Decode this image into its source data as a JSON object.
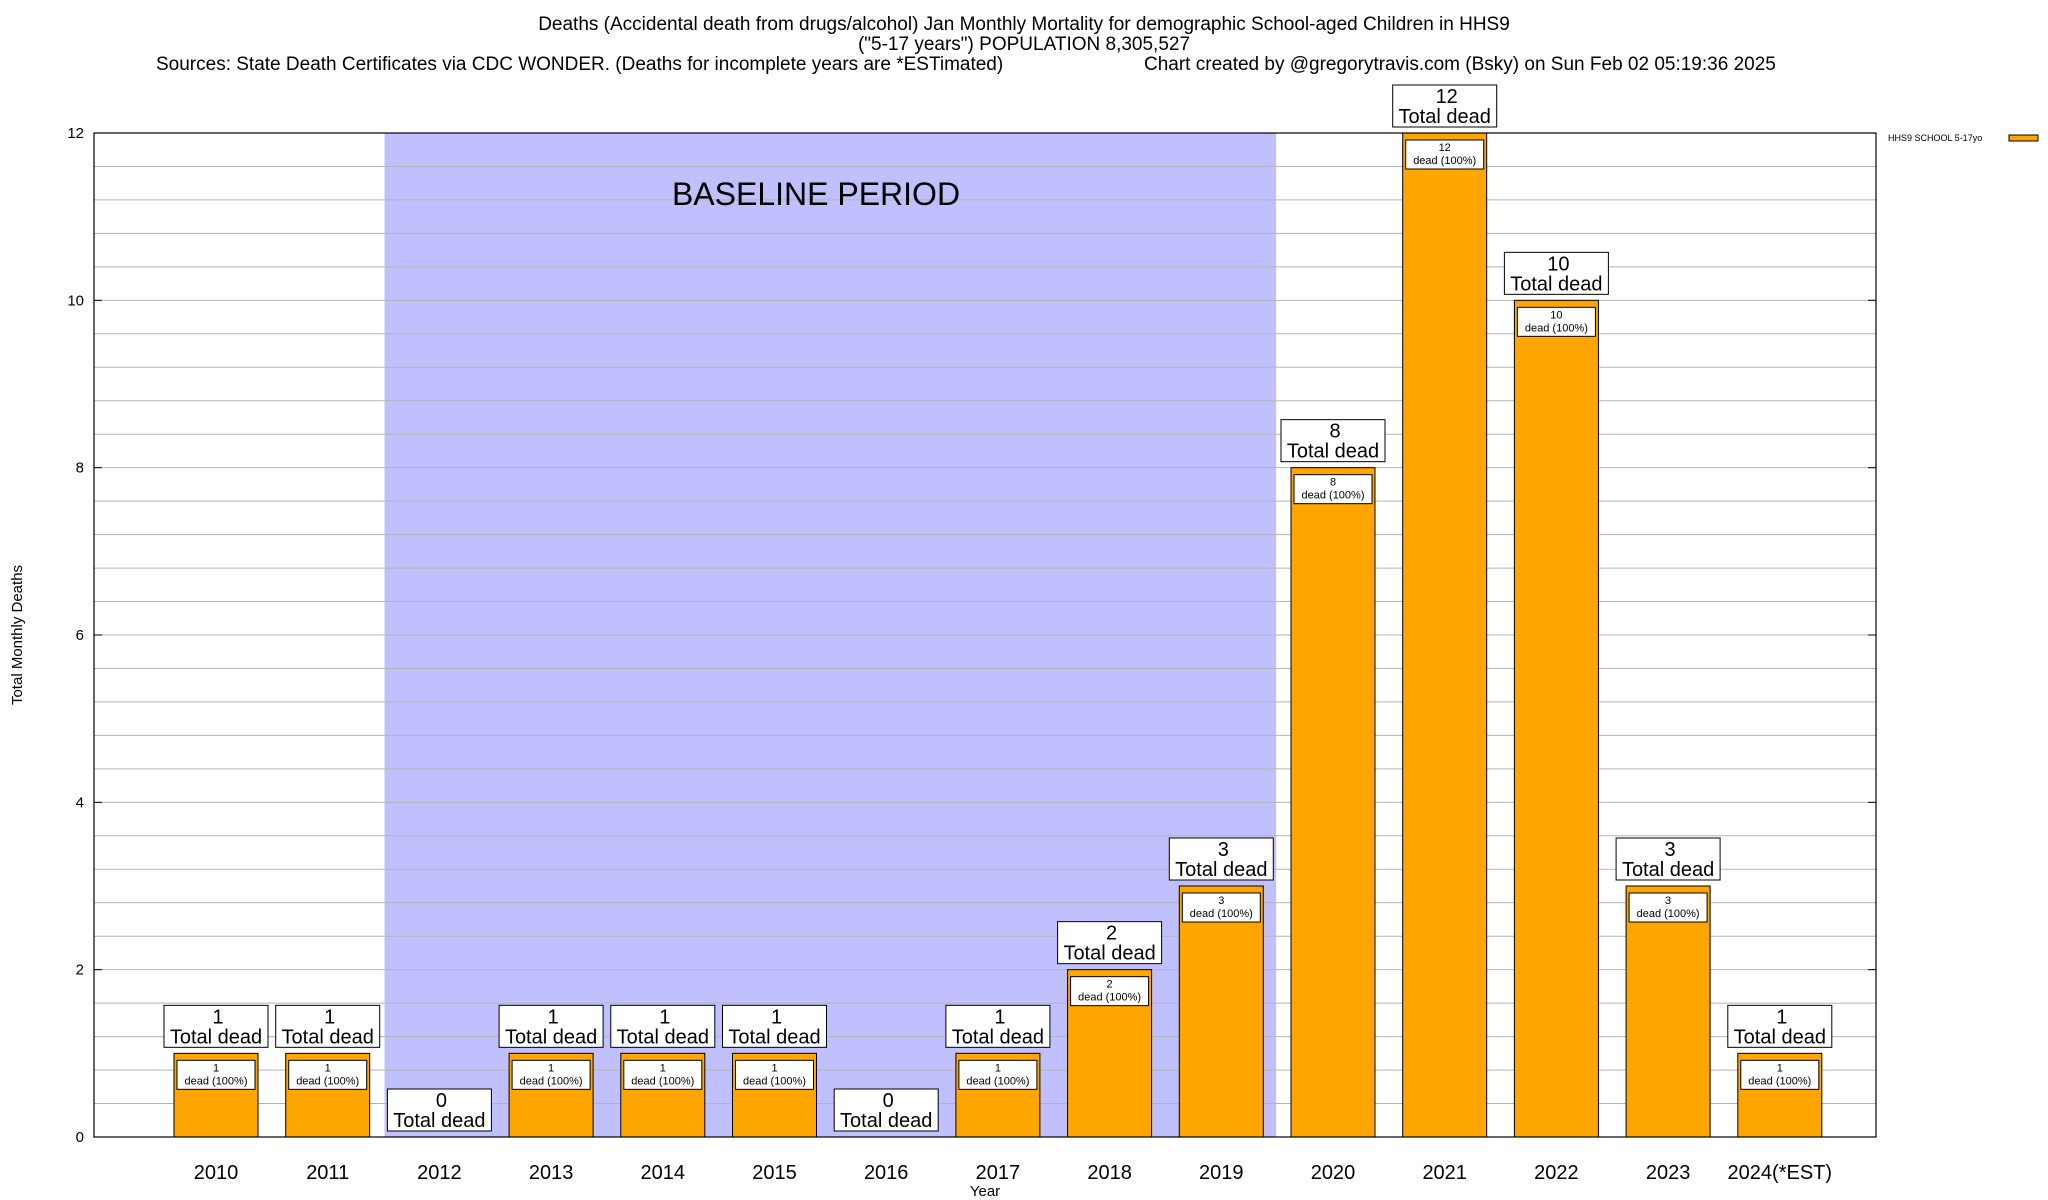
{
  "header": {
    "line1": "Deaths (Accidental death from drugs/alcohol) Jan Monthly Mortality for demographic School-aged Children in HHS9",
    "line2": "(\"5-17 years\") POPULATION 8,305,527",
    "line3_left": "Sources: State Death Certificates via CDC WONDER. (Deaths for incomplete years are *ESTimated)",
    "line3_right": "Chart created by @gregorytravis.com (Bsky) on Sun Feb 02 05:19:36 2025"
  },
  "chart_data": {
    "type": "bar",
    "xlabel": "Year",
    "ylabel": "Total Monthly Deaths",
    "ylim": [
      0,
      12
    ],
    "yticks": [
      0,
      2,
      4,
      6,
      8,
      10,
      12
    ],
    "minor_grid_step": 0.4,
    "categories": [
      "2010",
      "2011",
      "2012",
      "2013",
      "2014",
      "2015",
      "2016",
      "2017",
      "2018",
      "2019",
      "2020",
      "2021",
      "2022",
      "2023",
      "2024(*EST)"
    ],
    "series": [
      {
        "name": "HHS9 SCHOOL 5-17yo",
        "color": "#ffa500",
        "values": [
          1,
          1,
          0,
          1,
          1,
          1,
          0,
          1,
          2,
          3,
          8,
          12,
          10,
          3,
          1
        ]
      }
    ],
    "total_label": "Total dead",
    "bar_label_suffix": "dead (100%)",
    "baseline": {
      "label": "BASELINE PERIOD",
      "from": "2012",
      "to": "2019",
      "color": "#c0c0fe"
    }
  }
}
